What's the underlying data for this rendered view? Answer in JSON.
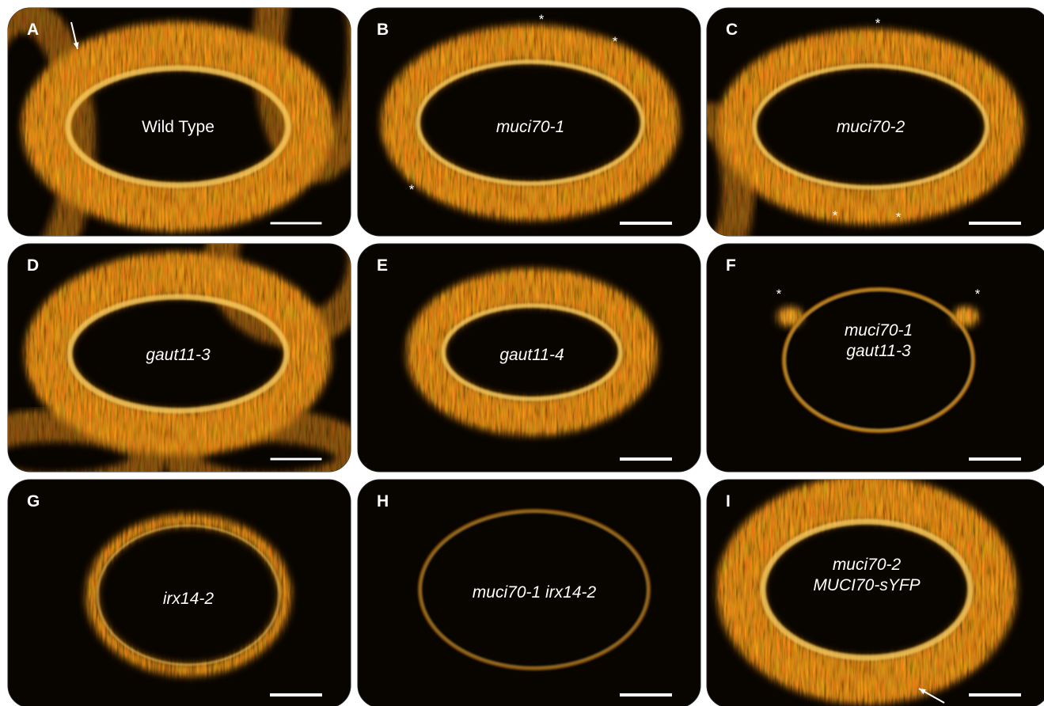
{
  "panels": [
    {
      "letter": "A",
      "label": [
        "Wild Type"
      ],
      "asterisks": []
    },
    {
      "letter": "B",
      "label": [
        "muci70-1"
      ],
      "asterisks": [
        "*",
        "*",
        "*"
      ]
    },
    {
      "letter": "C",
      "label": [
        "muci70-2"
      ],
      "asterisks": [
        "*",
        "*",
        "*"
      ]
    },
    {
      "letter": "D",
      "label": [
        "gaut11-3"
      ],
      "asterisks": []
    },
    {
      "letter": "E",
      "label": [
        "gaut11-4"
      ],
      "asterisks": []
    },
    {
      "letter": "F",
      "label": [
        "muci70-1",
        "gaut11-3"
      ],
      "asterisks": [
        "*",
        "*"
      ]
    },
    {
      "letter": "G",
      "label": [
        "irx14-2"
      ],
      "asterisks": []
    },
    {
      "letter": "H",
      "label": [
        "muci70-1 irx14-2"
      ],
      "asterisks": []
    },
    {
      "letter": "I",
      "label": [
        "muci70-2",
        "MUCI70-sYFP"
      ],
      "asterisks": []
    }
  ]
}
